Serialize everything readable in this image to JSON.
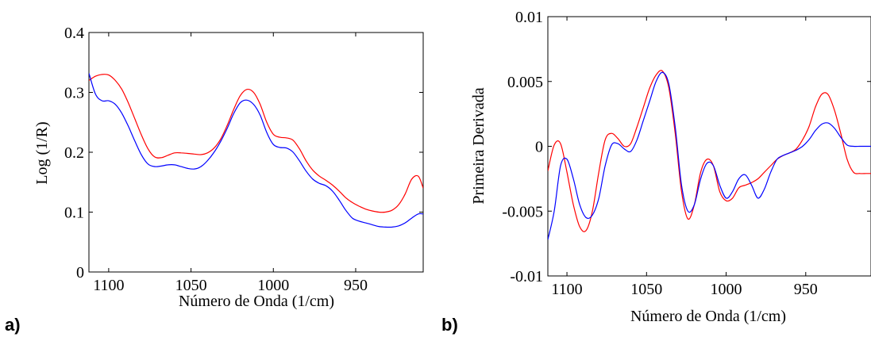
{
  "panel_labels": [
    "a)",
    "b)"
  ],
  "colors": {
    "series_red": "#ff0000",
    "series_blue": "#0000ff",
    "axis": "#000000"
  },
  "chart_data": [
    {
      "type": "line",
      "xlabel": "Número de Onda (1/cm)",
      "ylabel": "Log (1/R)",
      "xlim": [
        1112,
        909
      ],
      "ylim": [
        0,
        0.4
      ],
      "x_reversed": true,
      "xticks": [
        1100,
        1050,
        1000,
        950
      ],
      "xtick_labels": [
        "1100",
        "1050",
        "1000",
        "950"
      ],
      "yticks": [
        0,
        0.1,
        0.2,
        0.3,
        0.4
      ],
      "ytick_labels": [
        "0",
        "0.1",
        "0.2",
        "0.3",
        "0.4"
      ],
      "grid": false,
      "series": [
        {
          "color": "#ff0000",
          "x": [
            1112,
            1108,
            1104,
            1100,
            1096,
            1092,
            1088,
            1084,
            1080,
            1076,
            1072,
            1068,
            1064,
            1060,
            1056,
            1052,
            1048,
            1044,
            1040,
            1036,
            1032,
            1028,
            1024,
            1020,
            1016,
            1012,
            1008,
            1004,
            1000,
            996,
            992,
            988,
            984,
            980,
            976,
            972,
            968,
            964,
            960,
            956,
            952,
            948,
            944,
            940,
            936,
            932,
            928,
            924,
            920,
            916,
            912,
            909
          ],
          "y": [
            0.32,
            0.327,
            0.33,
            0.329,
            0.32,
            0.305,
            0.282,
            0.255,
            0.228,
            0.205,
            0.192,
            0.191,
            0.195,
            0.199,
            0.199,
            0.198,
            0.197,
            0.196,
            0.199,
            0.207,
            0.222,
            0.245,
            0.272,
            0.295,
            0.305,
            0.3,
            0.28,
            0.25,
            0.23,
            0.225,
            0.224,
            0.22,
            0.205,
            0.185,
            0.17,
            0.16,
            0.153,
            0.145,
            0.135,
            0.124,
            0.116,
            0.11,
            0.105,
            0.102,
            0.1,
            0.1,
            0.103,
            0.112,
            0.13,
            0.155,
            0.16,
            0.14
          ]
        },
        {
          "color": "#0000ff",
          "x": [
            1112,
            1108,
            1104,
            1100,
            1096,
            1092,
            1088,
            1084,
            1080,
            1076,
            1072,
            1068,
            1064,
            1060,
            1056,
            1052,
            1048,
            1044,
            1040,
            1036,
            1032,
            1028,
            1024,
            1020,
            1016,
            1012,
            1008,
            1004,
            1000,
            996,
            992,
            988,
            984,
            980,
            976,
            972,
            968,
            964,
            960,
            956,
            952,
            948,
            944,
            940,
            936,
            932,
            928,
            924,
            920,
            916,
            912,
            909
          ],
          "y": [
            0.332,
            0.297,
            0.286,
            0.286,
            0.28,
            0.265,
            0.243,
            0.218,
            0.195,
            0.18,
            0.176,
            0.177,
            0.179,
            0.179,
            0.176,
            0.173,
            0.172,
            0.176,
            0.186,
            0.2,
            0.218,
            0.24,
            0.265,
            0.283,
            0.287,
            0.28,
            0.262,
            0.233,
            0.213,
            0.208,
            0.207,
            0.2,
            0.185,
            0.168,
            0.155,
            0.148,
            0.144,
            0.135,
            0.12,
            0.103,
            0.09,
            0.085,
            0.082,
            0.079,
            0.076,
            0.075,
            0.075,
            0.077,
            0.082,
            0.09,
            0.097,
            0.097
          ]
        }
      ]
    },
    {
      "type": "line",
      "xlabel": "Número de Onda (1/cm)",
      "ylabel": "Primeira Derivada",
      "xlim": [
        1112,
        909
      ],
      "ylim": [
        -0.01,
        0.01
      ],
      "x_reversed": true,
      "xticks": [
        1100,
        1050,
        1000,
        950
      ],
      "xtick_labels": [
        "1100",
        "1050",
        "1000",
        "950"
      ],
      "yticks": [
        -0.01,
        -0.005,
        0,
        0.005,
        0.01
      ],
      "ytick_labels": [
        "-0.01",
        "-0.005",
        "0",
        "0.005",
        "0.01"
      ],
      "grid": false,
      "series": [
        {
          "color": "#ff0000",
          "x": [
            1112,
            1108,
            1104,
            1100,
            1096,
            1092,
            1088,
            1084,
            1080,
            1076,
            1072,
            1068,
            1064,
            1060,
            1056,
            1052,
            1048,
            1044,
            1040,
            1036,
            1032,
            1028,
            1024,
            1020,
            1016,
            1012,
            1008,
            1004,
            1000,
            996,
            992,
            988,
            984,
            980,
            976,
            972,
            968,
            964,
            960,
            956,
            952,
            948,
            944,
            940,
            936,
            932,
            928,
            924,
            920,
            916,
            912,
            909
          ],
          "y": [
            -0.0019,
            0.0001,
            0.0002,
            -0.002,
            -0.0045,
            -0.0062,
            -0.0065,
            -0.005,
            -0.002,
            0.0005,
            0.001,
            0.0006,
            0.0,
            0.0002,
            0.0015,
            0.003,
            0.0045,
            0.0055,
            0.0058,
            0.0045,
            0.001,
            -0.0035,
            -0.0056,
            -0.0045,
            -0.002,
            -0.001,
            -0.0015,
            -0.0035,
            -0.0042,
            -0.004,
            -0.0032,
            -0.003,
            -0.0028,
            -0.0025,
            -0.002,
            -0.0015,
            -0.001,
            -0.0007,
            -0.0005,
            -0.0002,
            0.0005,
            0.0015,
            0.003,
            0.004,
            0.004,
            0.0028,
            0.001,
            -0.001,
            -0.002,
            -0.0021,
            -0.0021,
            -0.0021
          ]
        },
        {
          "color": "#0000ff",
          "x": [
            1112,
            1108,
            1104,
            1100,
            1096,
            1092,
            1088,
            1084,
            1080,
            1076,
            1072,
            1068,
            1064,
            1060,
            1056,
            1052,
            1048,
            1044,
            1040,
            1036,
            1032,
            1028,
            1024,
            1020,
            1016,
            1012,
            1008,
            1004,
            1000,
            996,
            992,
            988,
            984,
            980,
            976,
            972,
            968,
            964,
            960,
            956,
            952,
            948,
            944,
            940,
            936,
            932,
            928,
            924,
            920,
            916,
            912,
            909
          ],
          "y": [
            -0.0072,
            -0.005,
            -0.0015,
            -0.001,
            -0.0025,
            -0.0045,
            -0.0055,
            -0.0053,
            -0.004,
            -0.0015,
            0.0001,
            0.0002,
            -0.0002,
            -0.0004,
            0.0005,
            0.002,
            0.0035,
            0.005,
            0.0057,
            0.0048,
            0.0015,
            -0.003,
            -0.005,
            -0.0045,
            -0.0025,
            -0.0013,
            -0.0015,
            -0.003,
            -0.004,
            -0.0035,
            -0.0025,
            -0.0022,
            -0.003,
            -0.004,
            -0.0033,
            -0.002,
            -0.001,
            -0.0007,
            -0.0005,
            -0.0003,
            0.0,
            0.0005,
            0.0012,
            0.0017,
            0.0018,
            0.0014,
            0.0007,
            0.0001,
            0.0,
            0.0,
            0.0,
            0.0
          ]
        }
      ]
    }
  ]
}
